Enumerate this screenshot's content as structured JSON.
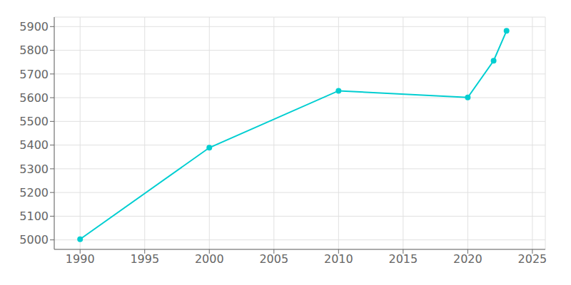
{
  "chart_data": {
    "type": "line",
    "x": [
      1990,
      2000,
      2010,
      2020,
      2022,
      2023
    ],
    "values": [
      5003,
      5389,
      5629,
      5601,
      5756,
      5882
    ],
    "color": "#00CED1",
    "marker": "circle",
    "xlim": [
      1988,
      2026
    ],
    "ylim": [
      4960,
      5940
    ],
    "xticks": [
      1990,
      1995,
      2000,
      2005,
      2010,
      2015,
      2020,
      2025
    ],
    "yticks": [
      5000,
      5100,
      5200,
      5300,
      5400,
      5500,
      5600,
      5700,
      5800,
      5900
    ],
    "grid": true
  }
}
